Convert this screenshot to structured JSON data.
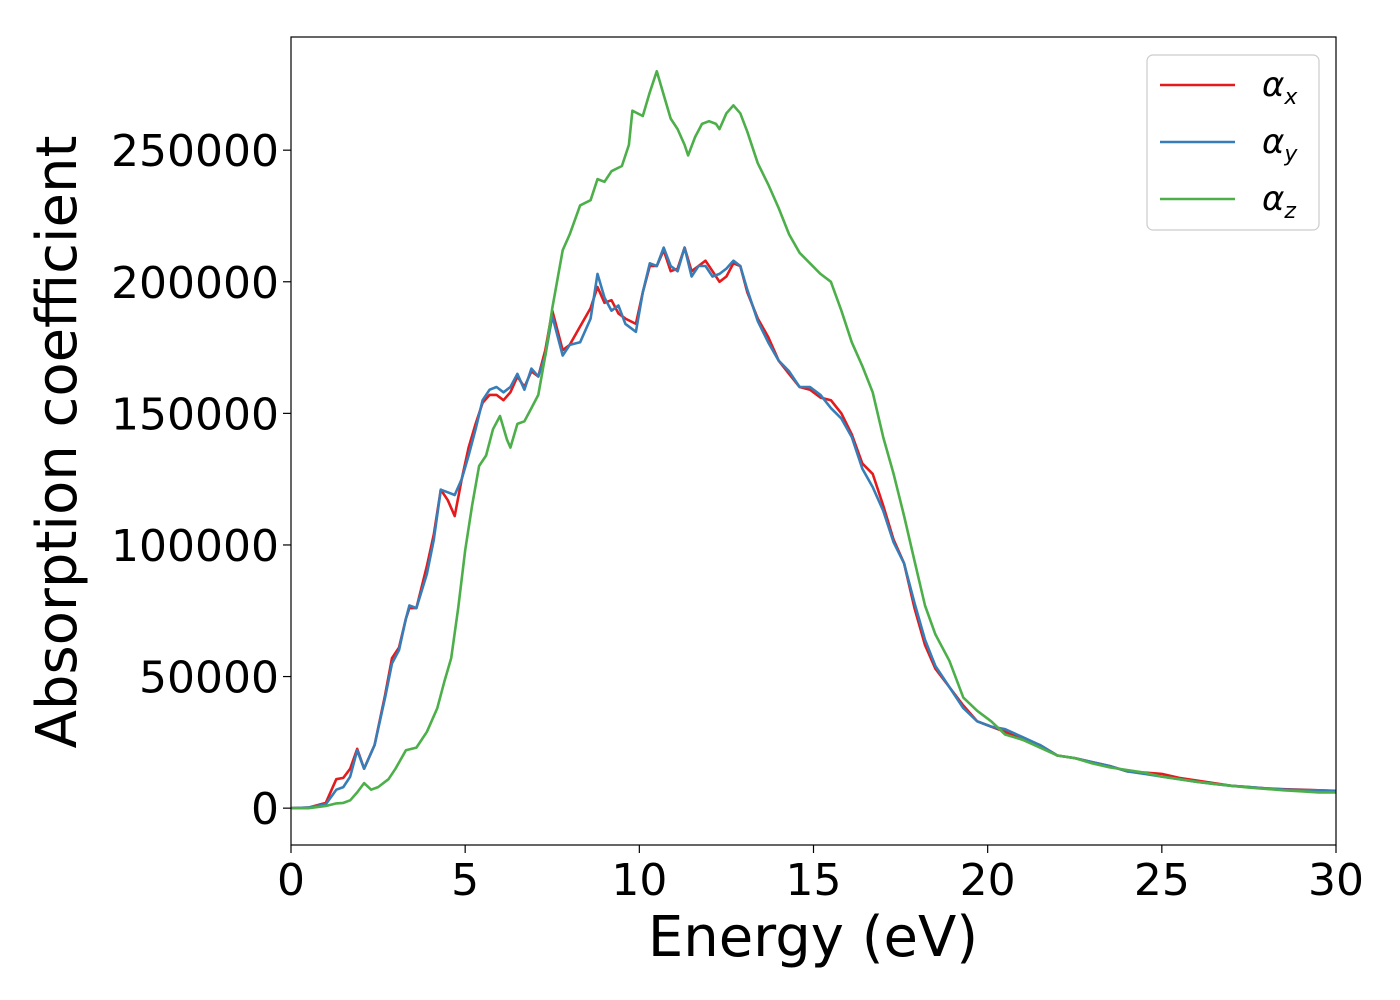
{
  "chart_data": {
    "type": "line",
    "title": "",
    "xlabel": "Energy (eV)",
    "ylabel": "Absorption coefficient",
    "xlim": [
      0,
      30
    ],
    "ylim": [
      -14000,
      293000
    ],
    "xticks": [
      0,
      5,
      10,
      15,
      20,
      25,
      30
    ],
    "yticks": [
      0,
      50000,
      100000,
      150000,
      200000,
      250000
    ],
    "grid": false,
    "legend_position": "top-right",
    "series": [
      {
        "name": "αx",
        "symbol": "α",
        "subscript": "x",
        "color": "#e41a1c",
        "points": [
          [
            0,
            0
          ],
          [
            0.5,
            200
          ],
          [
            1.0,
            2000
          ],
          [
            1.3,
            11000
          ],
          [
            1.5,
            11500
          ],
          [
            1.7,
            15000
          ],
          [
            1.9,
            22500
          ],
          [
            2.1,
            15000
          ],
          [
            2.4,
            24000
          ],
          [
            2.7,
            43000
          ],
          [
            2.9,
            57000
          ],
          [
            3.1,
            61000
          ],
          [
            3.3,
            72000
          ],
          [
            3.4,
            76000
          ],
          [
            3.6,
            76000
          ],
          [
            3.9,
            92000
          ],
          [
            4.1,
            104000
          ],
          [
            4.3,
            121000
          ],
          [
            4.5,
            117000
          ],
          [
            4.7,
            111000
          ],
          [
            4.9,
            125000
          ],
          [
            5.1,
            137000
          ],
          [
            5.3,
            146000
          ],
          [
            5.5,
            154000
          ],
          [
            5.7,
            157000
          ],
          [
            5.9,
            157000
          ],
          [
            6.1,
            155000
          ],
          [
            6.3,
            158000
          ],
          [
            6.5,
            164000
          ],
          [
            6.7,
            160000
          ],
          [
            6.9,
            166000
          ],
          [
            7.1,
            164000
          ],
          [
            7.3,
            174000
          ],
          [
            7.5,
            189000
          ],
          [
            7.8,
            174000
          ],
          [
            8.0,
            176000
          ],
          [
            8.3,
            183000
          ],
          [
            8.6,
            190000
          ],
          [
            8.8,
            198000
          ],
          [
            9.0,
            192000
          ],
          [
            9.2,
            193000
          ],
          [
            9.4,
            188000
          ],
          [
            9.6,
            186000
          ],
          [
            9.9,
            184000
          ],
          [
            10.1,
            196000
          ],
          [
            10.3,
            206000
          ],
          [
            10.5,
            206000
          ],
          [
            10.7,
            212000
          ],
          [
            10.9,
            204000
          ],
          [
            11.1,
            205000
          ],
          [
            11.3,
            213000
          ],
          [
            11.5,
            204000
          ],
          [
            11.7,
            206000
          ],
          [
            11.9,
            208000
          ],
          [
            12.1,
            204000
          ],
          [
            12.3,
            200000
          ],
          [
            12.5,
            202000
          ],
          [
            12.7,
            207000
          ],
          [
            12.9,
            206000
          ],
          [
            13.1,
            196000
          ],
          [
            13.4,
            186000
          ],
          [
            13.7,
            179000
          ],
          [
            14.0,
            170000
          ],
          [
            14.3,
            165000
          ],
          [
            14.6,
            160000
          ],
          [
            14.9,
            159000
          ],
          [
            15.2,
            156000
          ],
          [
            15.5,
            155000
          ],
          [
            15.8,
            150000
          ],
          [
            16.1,
            142000
          ],
          [
            16.4,
            131000
          ],
          [
            16.7,
            127000
          ],
          [
            17.0,
            115000
          ],
          [
            17.3,
            102000
          ],
          [
            17.6,
            93000
          ],
          [
            17.9,
            76000
          ],
          [
            18.2,
            62000
          ],
          [
            18.5,
            53000
          ],
          [
            18.9,
            46000
          ],
          [
            19.3,
            39000
          ],
          [
            19.7,
            33000
          ],
          [
            20.1,
            31000
          ],
          [
            20.5,
            29000
          ],
          [
            21.0,
            26000
          ],
          [
            21.5,
            24000
          ],
          [
            22.0,
            20000
          ],
          [
            22.5,
            19000
          ],
          [
            23.0,
            17500
          ],
          [
            23.5,
            16000
          ],
          [
            24.0,
            14000
          ],
          [
            24.5,
            13500
          ],
          [
            25.0,
            13000
          ],
          [
            25.5,
            11500
          ],
          [
            26.0,
            10500
          ],
          [
            26.5,
            9500
          ],
          [
            27.0,
            8500
          ],
          [
            27.5,
            8000
          ],
          [
            28.0,
            7500
          ],
          [
            28.5,
            7200
          ],
          [
            29.0,
            7000
          ],
          [
            29.5,
            6800
          ],
          [
            30.0,
            6500
          ]
        ]
      },
      {
        "name": "αy",
        "symbol": "α",
        "subscript": "y",
        "color": "#377eb8",
        "points": [
          [
            0,
            0
          ],
          [
            0.5,
            200
          ],
          [
            1.0,
            1500
          ],
          [
            1.3,
            7000
          ],
          [
            1.5,
            8000
          ],
          [
            1.7,
            12000
          ],
          [
            1.9,
            22000
          ],
          [
            2.1,
            15000
          ],
          [
            2.4,
            24000
          ],
          [
            2.7,
            42000
          ],
          [
            2.9,
            55000
          ],
          [
            3.1,
            60000
          ],
          [
            3.3,
            72000
          ],
          [
            3.4,
            77000
          ],
          [
            3.6,
            76000
          ],
          [
            3.9,
            89000
          ],
          [
            4.1,
            102000
          ],
          [
            4.3,
            121000
          ],
          [
            4.5,
            120000
          ],
          [
            4.7,
            119000
          ],
          [
            4.9,
            125000
          ],
          [
            5.1,
            134000
          ],
          [
            5.3,
            144000
          ],
          [
            5.5,
            155000
          ],
          [
            5.7,
            159000
          ],
          [
            5.9,
            160000
          ],
          [
            6.1,
            158000
          ],
          [
            6.3,
            160000
          ],
          [
            6.5,
            165000
          ],
          [
            6.7,
            159000
          ],
          [
            6.9,
            167000
          ],
          [
            7.1,
            164000
          ],
          [
            7.3,
            172000
          ],
          [
            7.5,
            187000
          ],
          [
            7.8,
            172000
          ],
          [
            8.0,
            176000
          ],
          [
            8.3,
            177000
          ],
          [
            8.6,
            186000
          ],
          [
            8.8,
            203000
          ],
          [
            9.0,
            194000
          ],
          [
            9.2,
            189000
          ],
          [
            9.4,
            191000
          ],
          [
            9.6,
            184000
          ],
          [
            9.9,
            181000
          ],
          [
            10.1,
            196000
          ],
          [
            10.3,
            207000
          ],
          [
            10.5,
            206000
          ],
          [
            10.7,
            213000
          ],
          [
            10.9,
            206000
          ],
          [
            11.1,
            204000
          ],
          [
            11.3,
            213000
          ],
          [
            11.5,
            202000
          ],
          [
            11.7,
            206000
          ],
          [
            11.9,
            206000
          ],
          [
            12.1,
            202000
          ],
          [
            12.3,
            203000
          ],
          [
            12.5,
            205000
          ],
          [
            12.7,
            208000
          ],
          [
            12.9,
            206000
          ],
          [
            13.1,
            197000
          ],
          [
            13.4,
            185000
          ],
          [
            13.7,
            177000
          ],
          [
            14.0,
            170000
          ],
          [
            14.3,
            166000
          ],
          [
            14.6,
            160000
          ],
          [
            14.9,
            160000
          ],
          [
            15.2,
            157000
          ],
          [
            15.5,
            152000
          ],
          [
            15.8,
            148000
          ],
          [
            16.1,
            141000
          ],
          [
            16.4,
            129000
          ],
          [
            16.7,
            122000
          ],
          [
            17.0,
            113000
          ],
          [
            17.3,
            101000
          ],
          [
            17.6,
            93000
          ],
          [
            17.9,
            78000
          ],
          [
            18.2,
            64000
          ],
          [
            18.5,
            54000
          ],
          [
            18.9,
            46000
          ],
          [
            19.3,
            38000
          ],
          [
            19.7,
            33000
          ],
          [
            20.1,
            31000
          ],
          [
            20.5,
            30000
          ],
          [
            21.0,
            27000
          ],
          [
            21.5,
            24000
          ],
          [
            22.0,
            20000
          ],
          [
            22.5,
            19000
          ],
          [
            23.0,
            17500
          ],
          [
            23.5,
            16000
          ],
          [
            24.0,
            14000
          ],
          [
            24.5,
            13000
          ],
          [
            25.0,
            12000
          ],
          [
            25.5,
            11000
          ],
          [
            26.0,
            10000
          ],
          [
            26.5,
            9200
          ],
          [
            27.0,
            8500
          ],
          [
            27.5,
            8000
          ],
          [
            28.0,
            7500
          ],
          [
            28.5,
            7100
          ],
          [
            29.0,
            6900
          ],
          [
            29.5,
            6800
          ],
          [
            30.0,
            6600
          ]
        ]
      },
      {
        "name": "αz",
        "symbol": "α",
        "subscript": "z",
        "color": "#4daf4a",
        "points": [
          [
            0,
            0
          ],
          [
            0.5,
            0
          ],
          [
            1.0,
            800
          ],
          [
            1.3,
            1800
          ],
          [
            1.5,
            2000
          ],
          [
            1.7,
            3000
          ],
          [
            1.9,
            6000
          ],
          [
            2.1,
            9500
          ],
          [
            2.3,
            7000
          ],
          [
            2.5,
            8000
          ],
          [
            2.8,
            11000
          ],
          [
            3.0,
            15000
          ],
          [
            3.3,
            22000
          ],
          [
            3.6,
            23000
          ],
          [
            3.9,
            29000
          ],
          [
            4.2,
            38000
          ],
          [
            4.4,
            48000
          ],
          [
            4.6,
            57000
          ],
          [
            4.8,
            76000
          ],
          [
            5.0,
            98000
          ],
          [
            5.2,
            115000
          ],
          [
            5.4,
            130000
          ],
          [
            5.6,
            134000
          ],
          [
            5.8,
            144000
          ],
          [
            6.0,
            149000
          ],
          [
            6.2,
            140000
          ],
          [
            6.3,
            137000
          ],
          [
            6.5,
            146000
          ],
          [
            6.7,
            147000
          ],
          [
            6.9,
            152000
          ],
          [
            7.1,
            157000
          ],
          [
            7.3,
            172000
          ],
          [
            7.5,
            190000
          ],
          [
            7.8,
            212000
          ],
          [
            8.0,
            218000
          ],
          [
            8.3,
            229000
          ],
          [
            8.6,
            231000
          ],
          [
            8.8,
            239000
          ],
          [
            9.0,
            238000
          ],
          [
            9.2,
            242000
          ],
          [
            9.5,
            244000
          ],
          [
            9.7,
            252000
          ],
          [
            9.8,
            265000
          ],
          [
            10.1,
            263000
          ],
          [
            10.3,
            272000
          ],
          [
            10.5,
            280000
          ],
          [
            10.7,
            271000
          ],
          [
            10.9,
            262000
          ],
          [
            11.1,
            258000
          ],
          [
            11.3,
            252000
          ],
          [
            11.4,
            248000
          ],
          [
            11.6,
            255000
          ],
          [
            11.8,
            260000
          ],
          [
            12.0,
            261000
          ],
          [
            12.2,
            260000
          ],
          [
            12.3,
            258000
          ],
          [
            12.5,
            264000
          ],
          [
            12.7,
            267000
          ],
          [
            12.9,
            264000
          ],
          [
            13.1,
            257000
          ],
          [
            13.4,
            245000
          ],
          [
            13.7,
            237000
          ],
          [
            14.0,
            228000
          ],
          [
            14.3,
            218000
          ],
          [
            14.6,
            211000
          ],
          [
            14.9,
            207000
          ],
          [
            15.2,
            203000
          ],
          [
            15.5,
            200000
          ],
          [
            15.8,
            189000
          ],
          [
            16.1,
            177000
          ],
          [
            16.4,
            168000
          ],
          [
            16.7,
            158000
          ],
          [
            17.0,
            141000
          ],
          [
            17.3,
            127000
          ],
          [
            17.6,
            111000
          ],
          [
            17.9,
            94000
          ],
          [
            18.2,
            77000
          ],
          [
            18.5,
            66000
          ],
          [
            18.9,
            56000
          ],
          [
            19.3,
            42000
          ],
          [
            19.7,
            37000
          ],
          [
            20.1,
            33000
          ],
          [
            20.5,
            28000
          ],
          [
            21.0,
            26000
          ],
          [
            21.5,
            23000
          ],
          [
            22.0,
            20000
          ],
          [
            22.5,
            19000
          ],
          [
            23.0,
            17000
          ],
          [
            23.5,
            15500
          ],
          [
            24.0,
            14500
          ],
          [
            24.5,
            13500
          ],
          [
            25.0,
            12000
          ],
          [
            25.5,
            11000
          ],
          [
            26.0,
            10000
          ],
          [
            26.5,
            9200
          ],
          [
            27.0,
            8500
          ],
          [
            27.5,
            7800
          ],
          [
            28.0,
            7300
          ],
          [
            28.5,
            6800
          ],
          [
            29.0,
            6400
          ],
          [
            29.5,
            6000
          ],
          [
            30.0,
            6000
          ]
        ]
      }
    ]
  }
}
